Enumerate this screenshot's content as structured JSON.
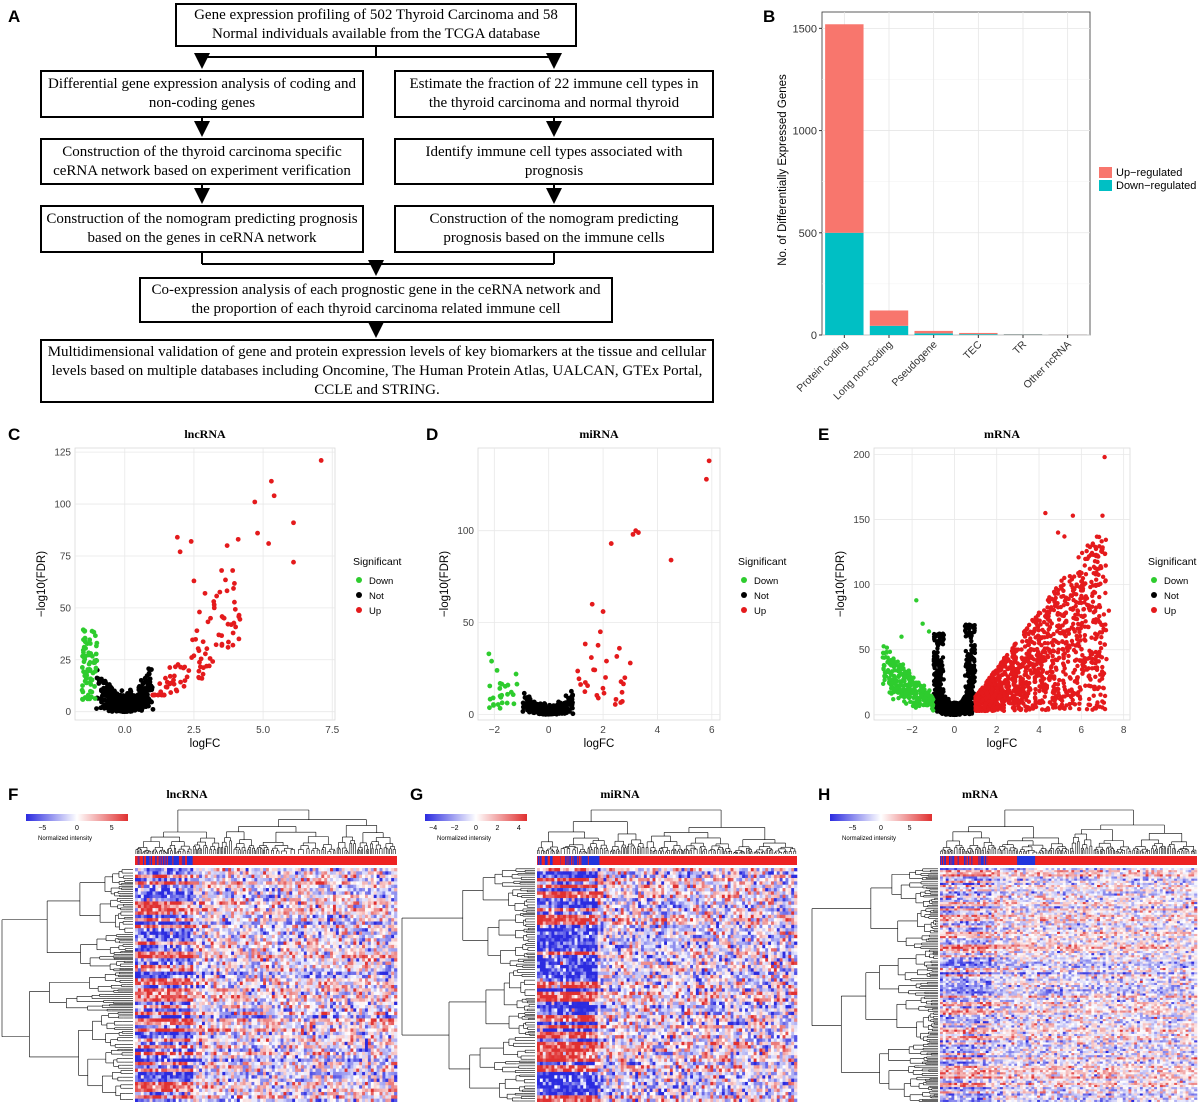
{
  "panel_labels": {
    "A": "A",
    "B": "B",
    "C": "C",
    "D": "D",
    "E": "E",
    "F": "F",
    "G": "G",
    "H": "H"
  },
  "flowchart": {
    "top": "Gene expression profiling of 502 Thyroid Carcinoma and 58 Normal individuals available from the TCGA database",
    "left1": "Differential gene expression analysis of coding and non-coding genes",
    "right1": "Estimate the fraction of 22 immune cell types in the thyroid carcinoma and normal thyroid",
    "left2": "Construction of the thyroid carcinoma specific ceRNA network based on experiment verification",
    "right2": "Identify immune cell types associated with prognosis",
    "left3": "Construction of the nomogram predicting prognosis based on the genes in ceRNA network",
    "right3": "Construction of the nomogram predicting prognosis based on the immune cells",
    "coexp": "Co-expression analysis of each prognostic gene in the ceRNA network and the proportion of each thyroid carcinoma related immune cell",
    "bottom": "Multidimensional validation of gene and protein expression levels of key biomarkers at the tissue and cellular levels based on multiple databases including Oncomine, The Human Protein Atlas, UALCAN, GTEx Portal, CCLE and STRING."
  },
  "colors": {
    "up": "#F8766D",
    "down": "#00BFC4",
    "sig_up": "#E41A1C",
    "sig_down": "#2ECC2E",
    "not": "#000000",
    "heat_low": "#2B2BE0",
    "heat_high": "#E03030"
  },
  "chart_data": [
    {
      "type": "bar",
      "stacked": true,
      "ylabel": "No. of Differentially Expressed Genes",
      "categories": [
        "Protein coding",
        "Long non-coding",
        "Pseudogene",
        "TEC",
        "TR",
        "Other ncRNA"
      ],
      "series": [
        {
          "name": "Down-regulated",
          "values": [
            500,
            45,
            8,
            4,
            2,
            1
          ]
        },
        {
          "name": "Up-regulated",
          "values": [
            1020,
            75,
            12,
            6,
            2,
            1
          ]
        }
      ],
      "legend": [
        "Up−regulated",
        "Down−regulated"
      ],
      "ylim": [
        0,
        1580
      ],
      "yticks": [
        0,
        500,
        1000,
        1500
      ]
    },
    {
      "type": "scatter",
      "title": "lncRNA",
      "xlabel": "logFC",
      "ylabel": "−log10(FDR)",
      "xlim": [
        -1.8,
        7.6
      ],
      "ylim": [
        -4,
        127
      ],
      "xticks": [
        "0.0",
        "2.5",
        "5.0",
        "7.5"
      ],
      "xtick_values": [
        0,
        2.5,
        5,
        7.5
      ],
      "yticks": [
        "0",
        "25",
        "50",
        "75",
        "100",
        "125"
      ],
      "ytick_values": [
        0,
        25,
        50,
        75,
        100,
        125
      ],
      "legend_title": "Significant",
      "legend": [
        "Down",
        "Not",
        "Up"
      ]
    },
    {
      "type": "scatter",
      "title": "miRNA",
      "xlabel": "logFC",
      "ylabel": "−log10(FDR)",
      "xlim": [
        -2.6,
        6.3
      ],
      "ylim": [
        -3,
        145
      ],
      "xticks": [
        "−2",
        "0",
        "2",
        "4",
        "6"
      ],
      "xtick_values": [
        -2,
        0,
        2,
        4,
        6
      ],
      "yticks": [
        "0",
        "50",
        "100"
      ],
      "ytick_values": [
        0,
        50,
        100
      ],
      "legend_title": "Significant",
      "legend": [
        "Down",
        "Not",
        "Up"
      ]
    },
    {
      "type": "scatter",
      "title": "mRNA",
      "xlabel": "logFC",
      "ylabel": "−log10(FDR)",
      "xlim": [
        -3.8,
        8.3
      ],
      "ylim": [
        -4,
        205
      ],
      "xticks": [
        "−2",
        "0",
        "2",
        "4",
        "6",
        "8"
      ],
      "xtick_values": [
        -2,
        0,
        2,
        4,
        6,
        8
      ],
      "yticks": [
        "0",
        "50",
        "100",
        "150",
        "200"
      ],
      "ytick_values": [
        0,
        50,
        100,
        150,
        200
      ],
      "legend_title": "Significant",
      "legend": [
        "Down",
        "Not",
        "Up"
      ]
    },
    {
      "type": "heatmap",
      "title": "lncRNA",
      "colorbar_ticks": [
        "−5",
        "0",
        "5"
      ],
      "colorbar_label": "Normalized intensity"
    },
    {
      "type": "heatmap",
      "title": "miRNA",
      "colorbar_ticks": [
        "−4",
        "−2",
        "0",
        "2",
        "4"
      ],
      "colorbar_label": "Normalized intensity"
    },
    {
      "type": "heatmap",
      "title": "mRNA",
      "colorbar_ticks": [
        "−5",
        "0",
        "5"
      ],
      "colorbar_label": "Normalized intensity"
    }
  ]
}
